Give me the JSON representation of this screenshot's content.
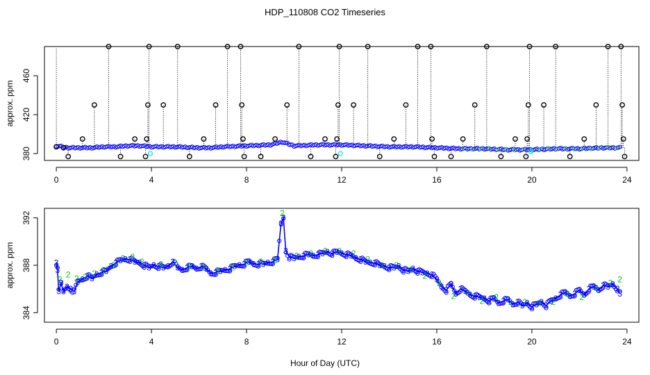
{
  "figure": {
    "title": "HDP_110808  CO2 Timeseries",
    "xlabel": "Hour of Day (UTC)"
  },
  "chart_data": [
    {
      "type": "scatter",
      "panel": "top",
      "title": "HDP_110808  CO2 Timeseries",
      "xlabel": "",
      "ylabel": "approx. ppm",
      "xlim": [
        -0.5,
        24.5
      ],
      "ylim": [
        373,
        490
      ],
      "xticks": [
        0,
        4,
        8,
        12,
        16,
        20,
        24
      ],
      "yticks": [
        380,
        420,
        460
      ],
      "colors": {
        "main": "#0000ff",
        "green": "#00cc00",
        "spike": "#000000",
        "cyan": "#00e5ee"
      },
      "baseline": [
        [
          0,
          388
        ],
        [
          0.5,
          386
        ],
        [
          1,
          386
        ],
        [
          1.5,
          386
        ],
        [
          2,
          387
        ],
        [
          2.5,
          387
        ],
        [
          3,
          388
        ],
        [
          3.5,
          388
        ],
        [
          4,
          387
        ],
        [
          5,
          387
        ],
        [
          6,
          386
        ],
        [
          6.5,
          386
        ],
        [
          7,
          387
        ],
        [
          8,
          388
        ],
        [
          9,
          389
        ],
        [
          9.5,
          392
        ],
        [
          10,
          388
        ],
        [
          11,
          389
        ],
        [
          12,
          389
        ],
        [
          13,
          388
        ],
        [
          14,
          387
        ],
        [
          15,
          387
        ],
        [
          16,
          386
        ],
        [
          17,
          385
        ],
        [
          18,
          385
        ],
        [
          19,
          384
        ],
        [
          20,
          384
        ],
        [
          21,
          385
        ],
        [
          22,
          385
        ],
        [
          23,
          386
        ],
        [
          23.7,
          386
        ]
      ],
      "spikes": [
        [
          0,
          387
        ],
        [
          0.3,
          386
        ],
        [
          0.5,
          377
        ],
        [
          1.1,
          395
        ],
        [
          1.6,
          430
        ],
        [
          2.2,
          490
        ],
        [
          2.7,
          377
        ],
        [
          3.3,
          395
        ],
        [
          3.75,
          377
        ],
        [
          3.8,
          395
        ],
        [
          3.85,
          430
        ],
        [
          3.9,
          490
        ],
        [
          4.5,
          430
        ],
        [
          5.1,
          490
        ],
        [
          5.6,
          377
        ],
        [
          6.2,
          395
        ],
        [
          6.7,
          430
        ],
        [
          7.2,
          490
        ],
        [
          7.75,
          490
        ],
        [
          7.8,
          430
        ],
        [
          7.85,
          395
        ],
        [
          7.9,
          377
        ],
        [
          8.6,
          377
        ],
        [
          9.2,
          395
        ],
        [
          9.7,
          430
        ],
        [
          10.2,
          490
        ],
        [
          10.7,
          377
        ],
        [
          11.3,
          395
        ],
        [
          11.75,
          377
        ],
        [
          11.8,
          395
        ],
        [
          11.85,
          430
        ],
        [
          11.9,
          490
        ],
        [
          12.5,
          430
        ],
        [
          13.1,
          490
        ],
        [
          13.6,
          377
        ],
        [
          14.2,
          395
        ],
        [
          14.7,
          430
        ],
        [
          15.2,
          490
        ],
        [
          15.75,
          490
        ],
        [
          15.8,
          395
        ],
        [
          15.9,
          377
        ],
        [
          16.6,
          377
        ],
        [
          17.1,
          395
        ],
        [
          17.6,
          430
        ],
        [
          18.1,
          490
        ],
        [
          18.7,
          377
        ],
        [
          19.3,
          395
        ],
        [
          19.75,
          377
        ],
        [
          19.8,
          395
        ],
        [
          19.85,
          430
        ],
        [
          19.9,
          490
        ],
        [
          20.5,
          430
        ],
        [
          21.0,
          490
        ],
        [
          21.6,
          377
        ],
        [
          22.2,
          395
        ],
        [
          22.7,
          430
        ],
        [
          23.2,
          490
        ],
        [
          23.75,
          490
        ],
        [
          23.8,
          430
        ],
        [
          23.85,
          395
        ],
        [
          23.9,
          377
        ]
      ],
      "cyan_points": [
        [
          3.95,
          380
        ],
        [
          11.95,
          380
        ],
        [
          19.95,
          382
        ]
      ]
    },
    {
      "type": "scatter",
      "panel": "bottom",
      "title": "",
      "xlabel": "Hour of Day (UTC)",
      "ylabel": "approx. ppm",
      "xlim": [
        -0.5,
        24.5
      ],
      "ylim": [
        383.2,
        392.8
      ],
      "xticks": [
        0,
        4,
        8,
        12,
        16,
        20,
        24
      ],
      "yticks": [
        384,
        388,
        392
      ],
      "point_labels": [
        "2",
        "3"
      ],
      "colors": {
        "series2": "#00cc00",
        "series3": "#0000ff",
        "circle": "#0000ff"
      },
      "series": [
        {
          "label": "3",
          "values": [
            [
              0.0,
              388.2
            ],
            [
              0.05,
              387.6
            ],
            [
              0.1,
              385.8
            ],
            [
              0.2,
              386.5
            ],
            [
              0.3,
              385.8
            ],
            [
              0.45,
              386.2
            ],
            [
              0.6,
              386.0
            ],
            [
              0.75,
              385.8
            ],
            [
              0.9,
              386.6
            ],
            [
              1.1,
              386.8
            ],
            [
              1.3,
              387.1
            ],
            [
              1.5,
              386.9
            ],
            [
              1.7,
              387.2
            ],
            [
              1.9,
              387.4
            ],
            [
              2.1,
              387.5
            ],
            [
              2.3,
              387.9
            ],
            [
              2.5,
              388.2
            ],
            [
              2.7,
              388.4
            ],
            [
              2.9,
              388.5
            ],
            [
              3.1,
              388.5
            ],
            [
              3.3,
              388.3
            ],
            [
              3.5,
              388.2
            ],
            [
              3.7,
              388.0
            ],
            [
              3.9,
              387.8
            ],
            [
              4.1,
              388.0
            ],
            [
              4.3,
              387.9
            ],
            [
              4.5,
              387.8
            ],
            [
              4.7,
              387.9
            ],
            [
              4.9,
              388.3
            ],
            [
              5.1,
              387.8
            ],
            [
              5.3,
              387.6
            ],
            [
              5.5,
              387.8
            ],
            [
              5.7,
              387.9
            ],
            [
              5.9,
              387.7
            ],
            [
              6.1,
              387.9
            ],
            [
              6.3,
              387.7
            ],
            [
              6.5,
              387.3
            ],
            [
              6.7,
              387.4
            ],
            [
              6.9,
              387.5
            ],
            [
              7.1,
              387.6
            ],
            [
              7.3,
              387.7
            ],
            [
              7.5,
              387.9
            ],
            [
              7.7,
              388.0
            ],
            [
              7.9,
              388.1
            ],
            [
              8.1,
              388.3
            ],
            [
              8.3,
              388.1
            ],
            [
              8.5,
              388.1
            ],
            [
              8.7,
              388.1
            ],
            [
              8.9,
              388.2
            ],
            [
              9.1,
              388.3
            ],
            [
              9.3,
              388.5
            ],
            [
              9.45,
              391.5
            ],
            [
              9.55,
              392.0
            ],
            [
              9.65,
              389.2
            ],
            [
              9.8,
              388.7
            ],
            [
              10.0,
              388.6
            ],
            [
              10.2,
              388.7
            ],
            [
              10.4,
              388.8
            ],
            [
              10.6,
              388.9
            ],
            [
              10.8,
              388.8
            ],
            [
              11.0,
              388.9
            ],
            [
              11.2,
              389.0
            ],
            [
              11.4,
              389.1
            ],
            [
              11.6,
              389.0
            ],
            [
              11.8,
              389.1
            ],
            [
              12.0,
              389.0
            ],
            [
              12.2,
              388.9
            ],
            [
              12.4,
              388.8
            ],
            [
              12.6,
              388.6
            ],
            [
              12.8,
              388.5
            ],
            [
              13.0,
              388.3
            ],
            [
              13.2,
              388.2
            ],
            [
              13.4,
              388.2
            ],
            [
              13.6,
              388.0
            ],
            [
              13.8,
              387.9
            ],
            [
              14.0,
              387.8
            ],
            [
              14.2,
              387.8
            ],
            [
              14.4,
              387.9
            ],
            [
              14.6,
              387.6
            ],
            [
              14.8,
              387.5
            ],
            [
              15.0,
              387.7
            ],
            [
              15.2,
              387.5
            ],
            [
              15.4,
              387.4
            ],
            [
              15.6,
              387.3
            ],
            [
              15.8,
              387.2
            ],
            [
              16.0,
              386.8
            ],
            [
              16.2,
              386.2
            ],
            [
              16.4,
              385.9
            ],
            [
              16.6,
              386.4
            ],
            [
              16.8,
              385.6
            ],
            [
              17.0,
              386.0
            ],
            [
              17.2,
              385.8
            ],
            [
              17.4,
              385.5
            ],
            [
              17.6,
              385.4
            ],
            [
              17.8,
              385.3
            ],
            [
              18.0,
              385.2
            ],
            [
              18.2,
              385.0
            ],
            [
              18.4,
              385.2
            ],
            [
              18.6,
              384.8
            ],
            [
              18.8,
              385.0
            ],
            [
              19.0,
              385.1
            ],
            [
              19.2,
              384.7
            ],
            [
              19.4,
              384.9
            ],
            [
              19.6,
              384.6
            ],
            [
              19.8,
              384.8
            ],
            [
              20.0,
              384.5
            ],
            [
              20.2,
              384.7
            ],
            [
              20.4,
              384.9
            ],
            [
              20.6,
              384.6
            ],
            [
              20.8,
              385.0
            ],
            [
              21.0,
              385.2
            ],
            [
              21.2,
              385.5
            ],
            [
              21.4,
              385.7
            ],
            [
              21.6,
              385.4
            ],
            [
              21.8,
              385.6
            ],
            [
              22.0,
              385.9
            ],
            [
              22.2,
              385.5
            ],
            [
              22.4,
              386.0
            ],
            [
              22.6,
              386.2
            ],
            [
              22.8,
              385.9
            ],
            [
              23.0,
              386.3
            ],
            [
              23.2,
              386.2
            ],
            [
              23.4,
              386.4
            ],
            [
              23.6,
              386.0
            ],
            [
              23.7,
              385.6
            ]
          ]
        },
        {
          "label": "2",
          "values": [
            [
              0.15,
              386.8
            ],
            [
              0.5,
              387.2
            ],
            [
              0.85,
              386.9
            ],
            [
              1.2,
              387.0
            ],
            [
              1.6,
              387.3
            ],
            [
              2.0,
              387.6
            ],
            [
              2.4,
              388.0
            ],
            [
              2.8,
              388.6
            ],
            [
              3.2,
              388.7
            ],
            [
              3.6,
              388.3
            ],
            [
              4.4,
              388.1
            ],
            [
              5.0,
              388.2
            ],
            [
              5.6,
              387.9
            ],
            [
              6.2,
              387.8
            ],
            [
              6.8,
              387.5
            ],
            [
              7.4,
              387.8
            ],
            [
              8.0,
              388.2
            ],
            [
              8.6,
              388.3
            ],
            [
              9.2,
              388.4
            ],
            [
              9.5,
              392.4
            ],
            [
              10.1,
              388.8
            ],
            [
              10.7,
              389.0
            ],
            [
              11.3,
              389.2
            ],
            [
              11.9,
              389.2
            ],
            [
              12.5,
              389.0
            ],
            [
              13.1,
              388.5
            ],
            [
              13.7,
              388.0
            ],
            [
              14.3,
              388.0
            ],
            [
              14.9,
              387.6
            ],
            [
              15.5,
              387.1
            ],
            [
              16.1,
              386.5
            ],
            [
              16.7,
              385.4
            ],
            [
              17.3,
              385.7
            ],
            [
              17.9,
              385.0
            ],
            [
              18.5,
              385.3
            ],
            [
              19.1,
              384.9
            ],
            [
              19.7,
              384.9
            ],
            [
              20.3,
              384.8
            ],
            [
              20.9,
              384.9
            ],
            [
              21.5,
              385.6
            ],
            [
              22.1,
              385.3
            ],
            [
              22.7,
              386.1
            ],
            [
              23.3,
              386.5
            ],
            [
              23.7,
              386.8
            ]
          ]
        }
      ]
    }
  ]
}
